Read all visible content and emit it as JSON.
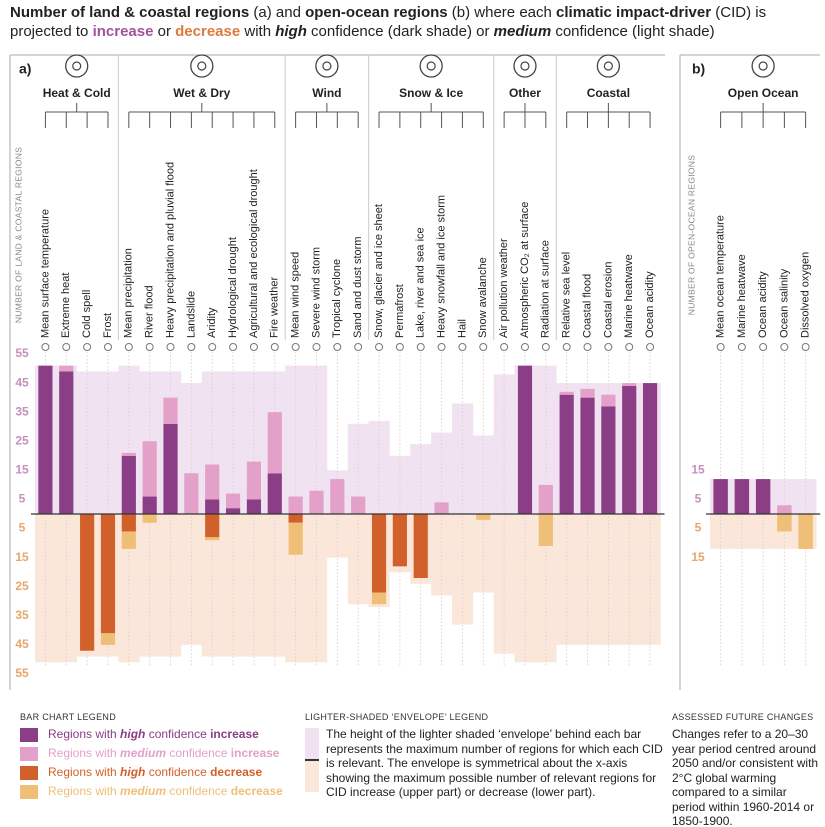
{
  "title_parts": [
    "Number of land & coastal regions",
    " (a) and ",
    "open-ocean regions",
    " (b) where each ",
    "climatic impact-driver",
    " (CID) is projected to ",
    "increase",
    " or ",
    "decrease",
    " with ",
    "high",
    " confidence (dark shade) or ",
    "medium",
    " confidence (light shade)"
  ],
  "chart_data": [
    {
      "type": "bar",
      "label": "a)",
      "y_label": "NUMBER OF LAND & COASTAL REGIONS",
      "groups": [
        {
          "name": "Heat & Cold",
          "categories": [
            "Mean surface temperature",
            "Extreme heat",
            "Cold spell",
            "Frost"
          ]
        },
        {
          "name": "Wet & Dry",
          "categories": [
            "Mean precipitation",
            "River flood",
            "Heavy precipitation and pluvial flood",
            "Landslide",
            "Aridity",
            "Hydrological drought",
            "Agricultural and ecological drought",
            "Fire weather"
          ]
        },
        {
          "name": "Wind",
          "categories": [
            "Mean wind speed",
            "Severe wind storm",
            "Tropical cyclone",
            "Sand and dust storm"
          ]
        },
        {
          "name": "Snow & Ice",
          "categories": [
            "Snow, glacier and ice sheet",
            "Permafrost",
            "Lake, river and sea ice",
            "Heavy snowfall and ice storm",
            "Hail",
            "Snow avalanche"
          ]
        },
        {
          "name": "Other",
          "categories": [
            "Air pollution weather",
            "Atmospheric CO₂ at surface",
            "Radiation at surface"
          ]
        },
        {
          "name": "Coastal",
          "categories": [
            "Relative sea level",
            "Coastal flood",
            "Coastal erosion",
            "Marine heatwave",
            "Ocean acidity"
          ]
        }
      ],
      "series": [
        {
          "name": [
            "Regions with ",
            "high",
            " confidence ",
            "increase"
          ],
          "color": "#8b3d86",
          "values": [
            51,
            49,
            null,
            null,
            20,
            6,
            31,
            null,
            5,
            2,
            5,
            14,
            null,
            null,
            null,
            null,
            null,
            null,
            null,
            null,
            null,
            null,
            null,
            51,
            null,
            41,
            40,
            37,
            44,
            45
          ]
        },
        {
          "name": [
            "Regions with ",
            "medium",
            " confidence ",
            "increase"
          ],
          "color": "#e3a0c8",
          "values": [
            null,
            2,
            null,
            null,
            1,
            19,
            9,
            14,
            12,
            5,
            13,
            21,
            6,
            8,
            12,
            6,
            null,
            null,
            null,
            4,
            null,
            null,
            null,
            null,
            10,
            1,
            3,
            4,
            1,
            null
          ]
        },
        {
          "name": [
            "Regions with ",
            "high",
            " confidence ",
            "decrease"
          ],
          "color": "#d2602a",
          "values": [
            null,
            null,
            -47,
            -41,
            -6,
            null,
            null,
            null,
            -8,
            null,
            null,
            null,
            -3,
            null,
            null,
            null,
            -27,
            -18,
            -22,
            null,
            null,
            null,
            null,
            null,
            null,
            null,
            null,
            null,
            null,
            null
          ]
        },
        {
          "name": [
            "Regions with ",
            "medium",
            " confidence ",
            "decrease"
          ],
          "color": "#efbf78",
          "values": [
            null,
            null,
            null,
            -4,
            -6,
            -3,
            null,
            null,
            -1,
            null,
            null,
            null,
            -11,
            null,
            null,
            null,
            -4,
            null,
            null,
            null,
            null,
            -2,
            null,
            null,
            -11,
            null,
            null,
            null,
            null,
            null
          ]
        }
      ],
      "envelope": {
        "increase_color": "#f0e2f0",
        "decrease_color": "#fbe7da",
        "values": [
          51,
          51,
          49,
          49,
          51,
          49,
          49,
          45,
          49,
          49,
          49,
          49,
          51,
          51,
          15,
          31,
          32,
          20,
          24,
          28,
          38,
          27,
          48,
          51,
          51,
          45,
          45,
          45,
          45,
          45
        ]
      },
      "ylim": [
        -55,
        55
      ],
      "yticks": [
        55,
        45,
        35,
        25,
        15,
        5,
        {
          "value": -5,
          "label": "5"
        },
        {
          "value": -15,
          "label": "15"
        },
        {
          "value": -25,
          "label": "25"
        },
        {
          "value": -35,
          "label": "35"
        },
        {
          "value": -45,
          "label": "45"
        },
        {
          "value": -55,
          "label": "55"
        }
      ]
    },
    {
      "type": "bar",
      "label": "b)",
      "y_label": "NUMBER OF OPEN-OCEAN REGIONS",
      "groups": [
        {
          "name": "Open Ocean",
          "categories": [
            "Mean ocean temperature",
            "Marine heatwave",
            "Ocean acidity",
            "Ocean salinity",
            "Dissolved oxygen"
          ]
        }
      ],
      "series": [
        {
          "color": "#8b3d86",
          "values": [
            12,
            12,
            12,
            null,
            null
          ]
        },
        {
          "color": "#e3a0c8",
          "values": [
            null,
            null,
            null,
            3,
            null
          ]
        },
        {
          "color": "#d2602a",
          "values": [
            null,
            null,
            null,
            null,
            null
          ]
        },
        {
          "color": "#efbf78",
          "values": [
            null,
            null,
            null,
            -6,
            -12
          ]
        }
      ],
      "envelope": {
        "increase_color": "#f0e2f0",
        "decrease_color": "#fbe7da",
        "values": [
          12,
          12,
          12,
          12,
          12
        ]
      },
      "ylim": [
        -55,
        55
      ],
      "yticks": [
        15,
        5,
        {
          "value": -5,
          "label": "5"
        },
        {
          "value": -15,
          "label": "15"
        }
      ]
    }
  ],
  "legend_title": "BAR CHART LEGEND",
  "envelope_legend": {
    "title": "LIGHTER-SHADED ‘ENVELOPE’ LEGEND",
    "text": "The height of the lighter shaded ‘envelope’ behind each bar represents the maximum number of regions for which each CID is relevant. The envelope is symmetrical about the x-axis showing the maximum possible number of relevant regions for CID increase (upper part) or decrease (lower part)."
  },
  "assessed": {
    "title": "ASSESSED FUTURE CHANGES",
    "text": "Changes refer to a 20–30 year period centred around 2050 and/or consistent with 2°C global warming compared to a similar period within 1960-2014 or 1850-1900."
  }
}
